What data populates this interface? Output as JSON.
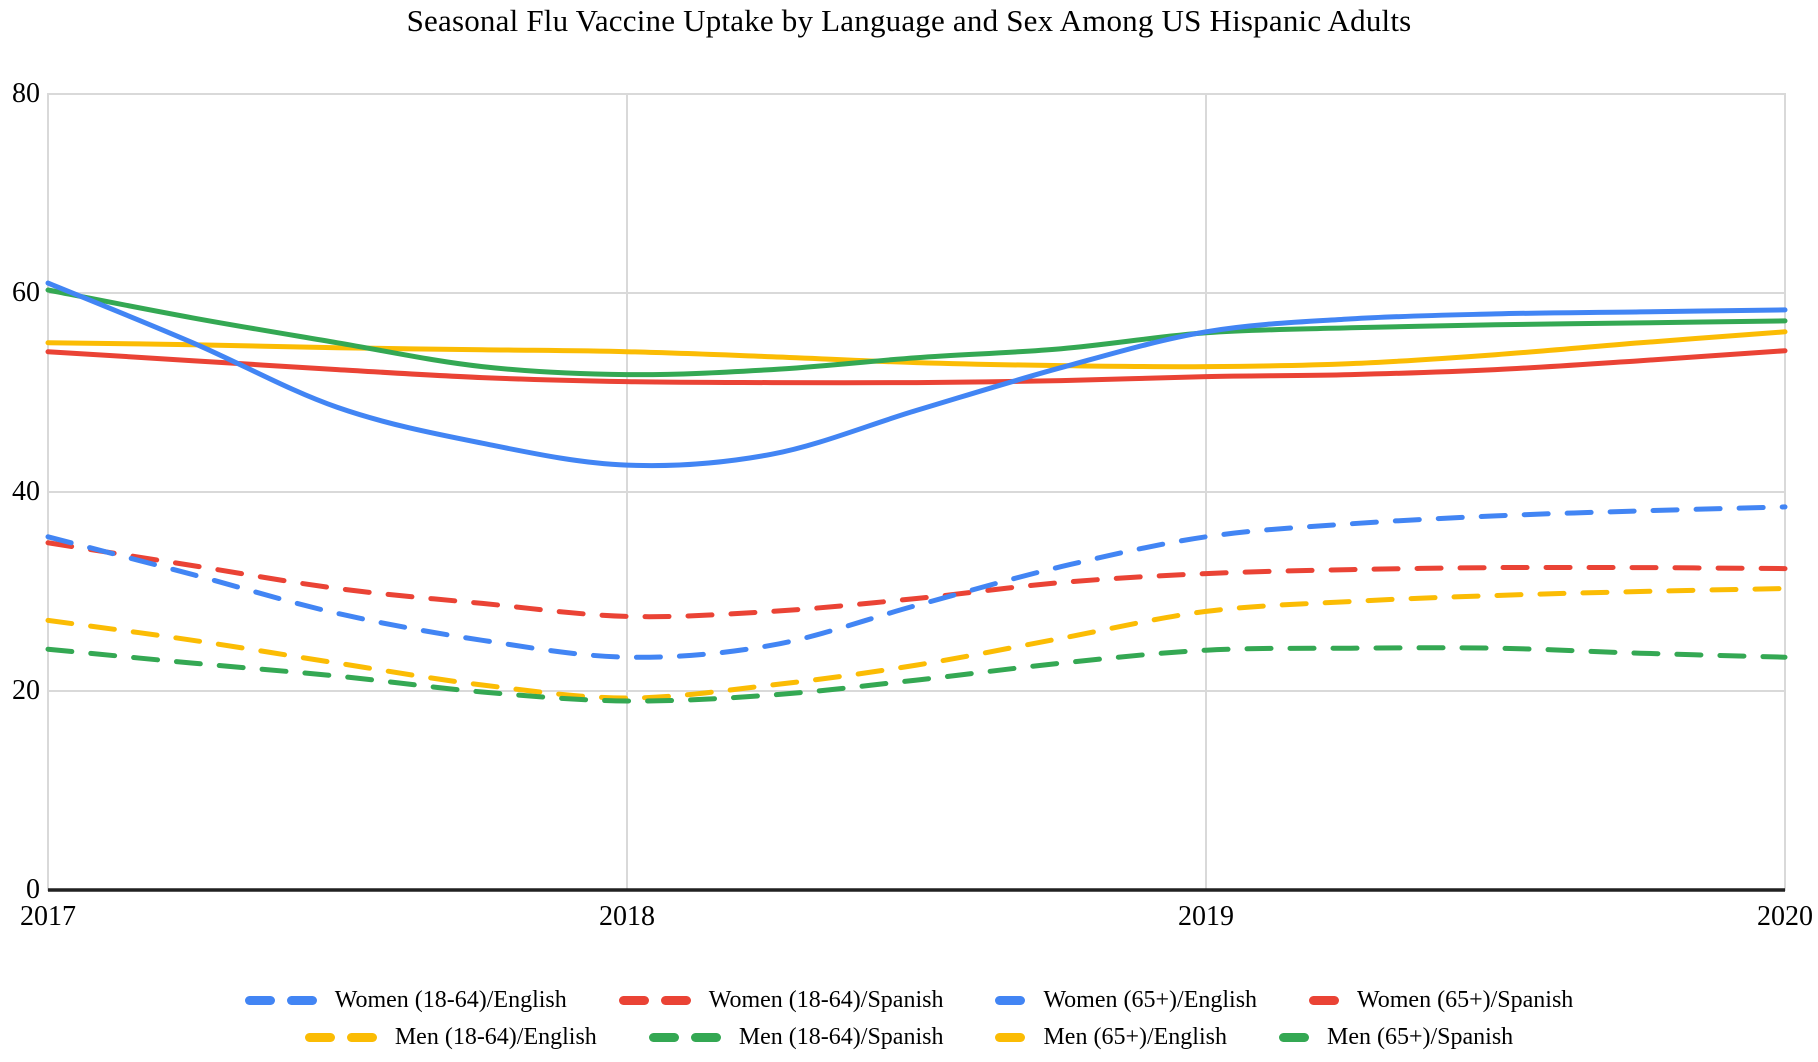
{
  "title": "Seasonal Flu Vaccine Uptake by Language and Sex Among US Hispanic Adults",
  "colors": {
    "blue": "#4285F4",
    "red": "#EA4335",
    "yellow": "#FBBC04",
    "green": "#34A853",
    "grid": "#d9d9d9",
    "axis": "#212121",
    "text": "#000000"
  },
  "chart_data": {
    "type": "line",
    "title": "Seasonal Flu Vaccine Uptake by Language and Sex Among US Hispanic Adults",
    "xlabel": "",
    "ylabel": "",
    "xlim": [
      2017,
      2020
    ],
    "ylim": [
      0,
      80
    ],
    "x_ticks": [
      "2017",
      "2018",
      "2019",
      "2020"
    ],
    "x_tick_values": [
      2017,
      2018,
      2019,
      2020
    ],
    "y_ticks": [
      "0",
      "20",
      "40",
      "60",
      "80"
    ],
    "y_tick_values": [
      0,
      20,
      40,
      60,
      80
    ],
    "grid": true,
    "legend_position": "bottom",
    "x": [
      2017,
      2017.25,
      2017.5,
      2017.75,
      2018,
      2018.25,
      2018.5,
      2018.75,
      2019,
      2019.25,
      2019.5,
      2019.75,
      2020
    ],
    "series": [
      {
        "name": "Women (18-64)/English",
        "slug": "women-18-64-english",
        "color": "#4285F4",
        "dashed": true,
        "values": [
          35.5,
          31.7,
          27.8,
          25.1,
          23.4,
          24.6,
          28.6,
          32.5,
          35.5,
          36.8,
          37.6,
          38.1,
          38.5
        ]
      },
      {
        "name": "Women (18-64)/Spanish",
        "slug": "women-18-64-spanish",
        "color": "#EA4335",
        "dashed": true,
        "values": [
          34.9,
          32.6,
          30.3,
          28.8,
          27.5,
          28.0,
          29.3,
          30.9,
          31.8,
          32.2,
          32.4,
          32.4,
          32.3
        ]
      },
      {
        "name": "Women (65+)/English",
        "slug": "women-65-english",
        "color": "#4285F4",
        "dashed": false,
        "values": [
          61.0,
          55.0,
          48.5,
          44.9,
          42.7,
          43.8,
          48.2,
          52.5,
          56.1,
          57.4,
          57.9,
          58.1,
          58.3
        ]
      },
      {
        "name": "Women (65+)/Spanish",
        "slug": "women-65-spanish",
        "color": "#EA4335",
        "dashed": false,
        "values": [
          54.1,
          53.2,
          52.3,
          51.5,
          51.1,
          51.0,
          51.0,
          51.2,
          51.6,
          51.8,
          52.3,
          53.2,
          54.2
        ]
      },
      {
        "name": "Men (18-64)/English",
        "slug": "men-18-64-english",
        "color": "#FBBC04",
        "dashed": true,
        "values": [
          27.1,
          25.1,
          22.8,
          20.6,
          19.3,
          20.6,
          22.6,
          25.3,
          28.0,
          29.0,
          29.6,
          30.0,
          30.3
        ]
      },
      {
        "name": "Men (18-64)/Spanish",
        "slug": "men-18-64-spanish",
        "color": "#34A853",
        "dashed": true,
        "values": [
          24.2,
          22.8,
          21.5,
          19.9,
          19.0,
          19.6,
          21.1,
          22.8,
          24.1,
          24.3,
          24.3,
          23.8,
          23.4
        ]
      },
      {
        "name": "Men (65+)/English",
        "slug": "men-65-english",
        "color": "#FBBC04",
        "dashed": false,
        "values": [
          55.0,
          54.8,
          54.5,
          54.3,
          54.1,
          53.6,
          53.0,
          52.7,
          52.6,
          52.9,
          53.8,
          55.0,
          56.1
        ]
      },
      {
        "name": "Men (65+)/Spanish",
        "slug": "men-65-spanish",
        "color": "#34A853",
        "dashed": false,
        "values": [
          60.3,
          57.5,
          55.0,
          52.6,
          51.8,
          52.3,
          53.5,
          54.4,
          56.0,
          56.5,
          56.8,
          57.0,
          57.2
        ]
      }
    ],
    "legend_rows": [
      [
        0,
        1,
        2,
        3
      ],
      [
        4,
        5,
        6,
        7
      ]
    ],
    "draw_order": [
      4,
      5,
      1,
      0,
      3,
      6,
      7,
      2
    ]
  }
}
